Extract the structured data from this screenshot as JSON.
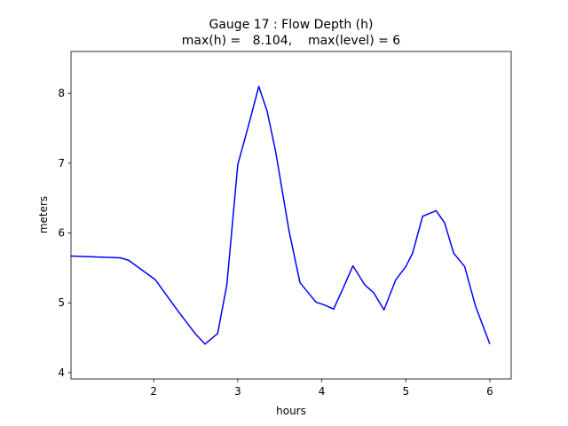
{
  "chart_data": {
    "type": "line",
    "title": "Gauge 17 : Flow Depth (h)",
    "subtitle": "max(h) =   8.104,    max(level) = 6",
    "x_label": "hours",
    "y_label": "meters",
    "x": [
      1.015,
      1.6,
      1.7,
      2.02,
      2.29,
      2.5,
      2.61,
      2.76,
      2.87,
      3.0,
      3.13,
      3.25,
      3.35,
      3.45,
      3.61,
      3.74,
      3.93,
      4.03,
      4.14,
      4.25,
      4.37,
      4.51,
      4.62,
      4.74,
      4.88,
      5.0,
      5.08,
      5.2,
      5.36,
      5.46,
      5.57,
      5.7,
      5.83,
      6.0
    ],
    "series": [
      {
        "name": "h",
        "color": "#0000ff",
        "values": [
          5.67,
          5.645,
          5.61,
          5.33,
          4.88,
          4.55,
          4.41,
          4.56,
          5.26,
          6.98,
          7.55,
          8.1,
          7.74,
          7.17,
          6.03,
          5.29,
          5.01,
          4.97,
          4.91,
          5.2,
          5.53,
          5.26,
          5.14,
          4.9,
          5.33,
          5.52,
          5.71,
          6.24,
          6.32,
          6.15,
          5.71,
          5.52,
          4.95,
          4.41
        ]
      }
    ],
    "xlim": [
      1.015,
      6.254
    ],
    "ylim": [
      3.91,
      8.6
    ],
    "xticks": [
      2,
      3,
      4,
      5,
      6
    ],
    "yticks": [
      4,
      5,
      6,
      7,
      8
    ],
    "grid": false
  }
}
